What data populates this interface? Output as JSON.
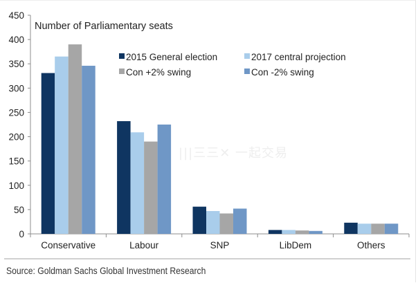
{
  "chart_data": {
    "type": "bar",
    "title": "Number of Parliamentary seats",
    "xlabel": "",
    "ylabel": "",
    "ylim": [
      0,
      450
    ],
    "yticks": [
      0,
      50,
      100,
      150,
      200,
      250,
      300,
      350,
      400,
      450
    ],
    "grid": false,
    "legend_position": "top-right",
    "categories": [
      "Conservative",
      "Labour",
      "SNP",
      "LibDem",
      "Others"
    ],
    "series": [
      {
        "name": "2015 General election",
        "color": "#0f3561",
        "values": [
          331,
          232,
          56,
          8,
          23
        ]
      },
      {
        "name": "2017 central projection",
        "color": "#a9cdeb",
        "values": [
          365,
          209,
          47,
          8,
          21
        ]
      },
      {
        "name": "Con +2% swing",
        "color": "#a6a6a6",
        "values": [
          390,
          190,
          42,
          7,
          21
        ]
      },
      {
        "name": "Con -2% swing",
        "color": "#6f97c6",
        "values": [
          346,
          225,
          52,
          6,
          21
        ]
      }
    ]
  },
  "source": "Source: Goldman Sachs Global Investment Research",
  "watermark": "|||三三✕ 一起交易"
}
